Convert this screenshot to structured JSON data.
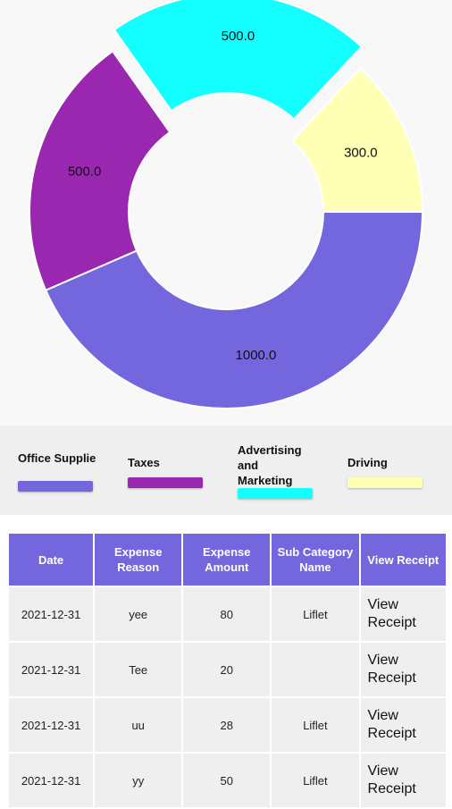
{
  "chart_data": {
    "type": "pie",
    "categories": [
      "Office Supplie",
      "Taxes",
      "Advertising and Marketing",
      "Driving"
    ],
    "values": [
      1000.0,
      500.0,
      500.0,
      300.0
    ],
    "value_labels": [
      "1000.0",
      "500.0",
      "500.0",
      "300.0"
    ],
    "colors": [
      "#7467de",
      "#9a27b0",
      "#13ffff",
      "#ffffb5"
    ],
    "donut": true,
    "exploded_category": "Advertising and Marketing"
  },
  "legend": [
    {
      "label": "Office Supplie",
      "color": "#7467de"
    },
    {
      "label": "Taxes",
      "color": "#9a27b0"
    },
    {
      "label": "Advertising and Marketing",
      "color": "#13ffff"
    },
    {
      "label": "Driving",
      "color": "#ffffb5"
    }
  ],
  "table": {
    "headers": [
      "Date",
      "Expense Reason",
      "Expense Amount",
      "Sub Category Name",
      "View Receipt"
    ],
    "rows": [
      {
        "date": "2021-12-31",
        "reason": "yee",
        "amount": "80",
        "subcategory": "Liflet",
        "receipt_line1": "View",
        "receipt_line2": "Receipt"
      },
      {
        "date": "2021-12-31",
        "reason": "Tee",
        "amount": "20",
        "subcategory": "",
        "receipt_line1": "View",
        "receipt_line2": "Receipt"
      },
      {
        "date": "2021-12-31",
        "reason": "uu",
        "amount": "28",
        "subcategory": "Liflet",
        "receipt_line1": "View",
        "receipt_line2": "Receipt"
      },
      {
        "date": "2021-12-31",
        "reason": "yy",
        "amount": "50",
        "subcategory": "Liflet",
        "receipt_line1": "View",
        "receipt_line2": "Receipt"
      }
    ]
  }
}
